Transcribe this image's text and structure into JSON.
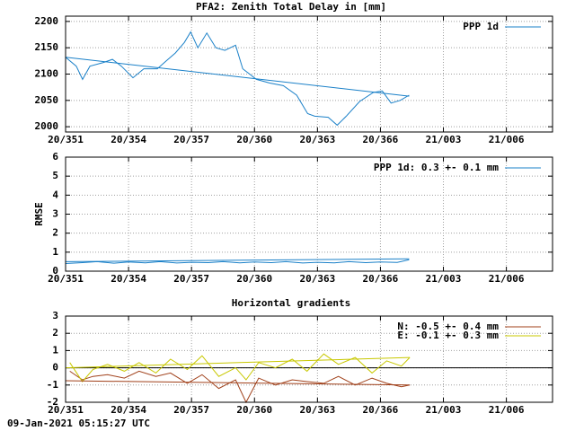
{
  "chart_data": [
    {
      "type": "line",
      "title": "PFA2: Zenith Total Delay in [mm]",
      "xlim": [
        351,
        374.2
      ],
      "ylim": [
        1990,
        2210
      ],
      "xticks": [
        {
          "value": 351,
          "label": "20/351"
        },
        {
          "value": 354,
          "label": "20/354"
        },
        {
          "value": 357,
          "label": "20/357"
        },
        {
          "value": 360,
          "label": "20/360"
        },
        {
          "value": 363,
          "label": "20/363"
        },
        {
          "value": 366,
          "label": "20/366"
        },
        {
          "value": 369,
          "label": "21/003"
        },
        {
          "value": 372,
          "label": "21/006"
        }
      ],
      "yticks": [
        2000,
        2050,
        2100,
        2150,
        2200
      ],
      "grid": true,
      "series": [
        {
          "name": "PPP 1d",
          "color": "#1a80c8",
          "x": [
            351.0,
            351.51,
            351.81,
            352.16,
            352.8,
            353.23,
            353.66,
            354.21,
            354.73,
            355.37,
            355.8,
            356.23,
            356.66,
            356.96,
            357.3,
            357.73,
            358.16,
            358.59,
            359.1,
            359.44,
            360.09,
            360.73,
            361.37,
            362.01,
            362.53,
            362.87,
            363.51,
            363.94,
            364.37,
            365.01,
            365.66,
            366.09,
            366.51,
            366.94,
            367.37
          ],
          "values": [
            2132,
            2115,
            2090,
            2115,
            2122,
            2128,
            2115,
            2093,
            2110,
            2110,
            2125,
            2140,
            2160,
            2180,
            2150,
            2178,
            2150,
            2145,
            2155,
            2110,
            2090,
            2083,
            2078,
            2060,
            2025,
            2020,
            2018,
            2003,
            2020,
            2048,
            2065,
            2068,
            2045,
            2050,
            2060
          ]
        },
        {
          "color": "#1a80c8",
          "x": [
            351.0,
            367.37
          ],
          "values": [
            2132,
            2058
          ]
        }
      ]
    },
    {
      "type": "line",
      "y_label": "RMSE",
      "xlim": [
        351,
        374.2
      ],
      "ylim": [
        0,
        6
      ],
      "xticks": [
        {
          "value": 351,
          "label": "20/351"
        },
        {
          "value": 354,
          "label": "20/354"
        },
        {
          "value": 357,
          "label": "20/357"
        },
        {
          "value": 360,
          "label": "20/360"
        },
        {
          "value": 363,
          "label": "20/363"
        },
        {
          "value": 366,
          "label": "20/366"
        },
        {
          "value": 369,
          "label": "21/003"
        },
        {
          "value": 372,
          "label": "21/006"
        }
      ],
      "yticks": [
        0,
        1,
        2,
        3,
        4,
        5,
        6
      ],
      "grid": true,
      "series": [
        {
          "name": "PPP 1d: 0.3 +- 0.1 mm",
          "color": "#1a80c8",
          "x": [
            351.0,
            351.8,
            352.5,
            353.3,
            354.0,
            354.8,
            355.5,
            356.3,
            357.0,
            357.8,
            358.5,
            359.3,
            360.0,
            360.8,
            361.5,
            362.3,
            363.0,
            363.8,
            364.5,
            365.3,
            366.0,
            366.8,
            367.37
          ],
          "values": [
            0.4,
            0.45,
            0.5,
            0.42,
            0.48,
            0.44,
            0.5,
            0.43,
            0.47,
            0.45,
            0.5,
            0.44,
            0.48,
            0.45,
            0.5,
            0.43,
            0.47,
            0.44,
            0.5,
            0.45,
            0.48,
            0.46,
            0.6
          ]
        },
        {
          "color": "#1a80c8",
          "x": [
            351.0,
            367.37
          ],
          "values": [
            0.5,
            0.65
          ]
        }
      ]
    },
    {
      "type": "line",
      "title": "Horizontal gradients",
      "xlim": [
        351,
        374.2
      ],
      "ylim": [
        -2,
        3
      ],
      "xticks": [
        {
          "value": 351,
          "label": "20/351"
        },
        {
          "value": 354,
          "label": "20/354"
        },
        {
          "value": 357,
          "label": "20/357"
        },
        {
          "value": 360,
          "label": "20/360"
        },
        {
          "value": 363,
          "label": "20/363"
        },
        {
          "value": 366,
          "label": "20/366"
        },
        {
          "value": 369,
          "label": "21/003"
        },
        {
          "value": 372,
          "label": "21/006"
        }
      ],
      "yticks": [
        -2,
        -1,
        0,
        1,
        2,
        3
      ],
      "grid": true,
      "zero_line": true,
      "series": [
        {
          "name": "N: -0.5 +- 0.4 mm",
          "color": "#a0401a",
          "x": [
            351.2,
            351.8,
            352.3,
            353.0,
            353.8,
            354.5,
            355.3,
            356.0,
            356.8,
            357.5,
            358.3,
            359.1,
            359.6,
            360.2,
            361.0,
            361.8,
            362.5,
            363.3,
            364.0,
            364.8,
            365.6,
            366.3,
            367.0,
            367.4
          ],
          "values": [
            -0.2,
            -0.7,
            -0.5,
            -0.4,
            -0.6,
            -0.2,
            -0.5,
            -0.3,
            -0.9,
            -0.4,
            -1.2,
            -0.7,
            -2.0,
            -0.6,
            -1.0,
            -0.7,
            -0.8,
            -0.9,
            -0.5,
            -1.0,
            -0.6,
            -0.9,
            -1.1,
            -1.0
          ]
        },
        {
          "name": "E: -0.1 +- 0.3 mm",
          "color": "#c8c800",
          "x": [
            351.2,
            351.8,
            352.3,
            353.0,
            353.8,
            354.5,
            355.3,
            356.0,
            356.8,
            357.5,
            358.3,
            359.1,
            359.6,
            360.2,
            361.0,
            361.8,
            362.5,
            363.3,
            364.0,
            364.8,
            365.6,
            366.3,
            367.0,
            367.4
          ],
          "values": [
            0.3,
            -0.8,
            -0.1,
            0.2,
            -0.2,
            0.3,
            -0.3,
            0.5,
            -0.1,
            0.7,
            -0.5,
            0.0,
            -0.7,
            0.3,
            0.0,
            0.5,
            -0.2,
            0.8,
            0.2,
            0.6,
            -0.3,
            0.4,
            0.1,
            0.6
          ]
        },
        {
          "color": "#a0401a",
          "x": [
            351.0,
            367.4
          ],
          "values": [
            -0.75,
            -1.0
          ]
        },
        {
          "color": "#c8c800",
          "x": [
            351.0,
            367.4
          ],
          "values": [
            0.0,
            0.6
          ]
        }
      ]
    }
  ],
  "footer": "09-Jan-2021 05:15:27 UTC"
}
